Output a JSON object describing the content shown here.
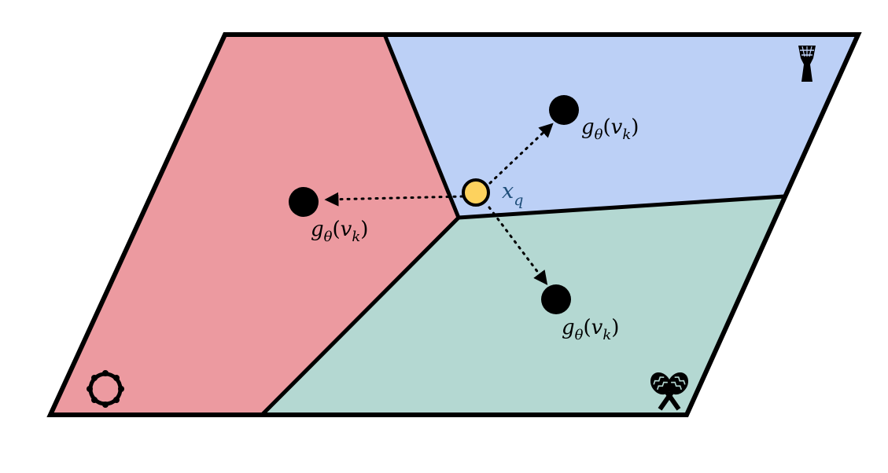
{
  "colors": {
    "red_region": "#ec9aa0",
    "blue_region": "#bcd0f6",
    "green_region": "#b4d8d2",
    "query_fill": "#fdd25e",
    "query_label": "#1f4e79",
    "stroke": "#000000"
  },
  "prototypes": [
    {
      "region": "red",
      "label_base": "g",
      "label_sub": "θ",
      "label_arg_base": "v",
      "label_arg_sub": "k"
    },
    {
      "region": "blue",
      "label_base": "g",
      "label_sub": "θ",
      "label_arg_base": "v",
      "label_arg_sub": "k"
    },
    {
      "region": "green",
      "label_base": "g",
      "label_sub": "θ",
      "label_arg_base": "v",
      "label_arg_sub": "k"
    }
  ],
  "query": {
    "label_base": "x",
    "label_sub": "q"
  },
  "icons": {
    "red": "tambourine-icon",
    "blue": "djembe-drum-icon",
    "green": "maracas-icon"
  }
}
